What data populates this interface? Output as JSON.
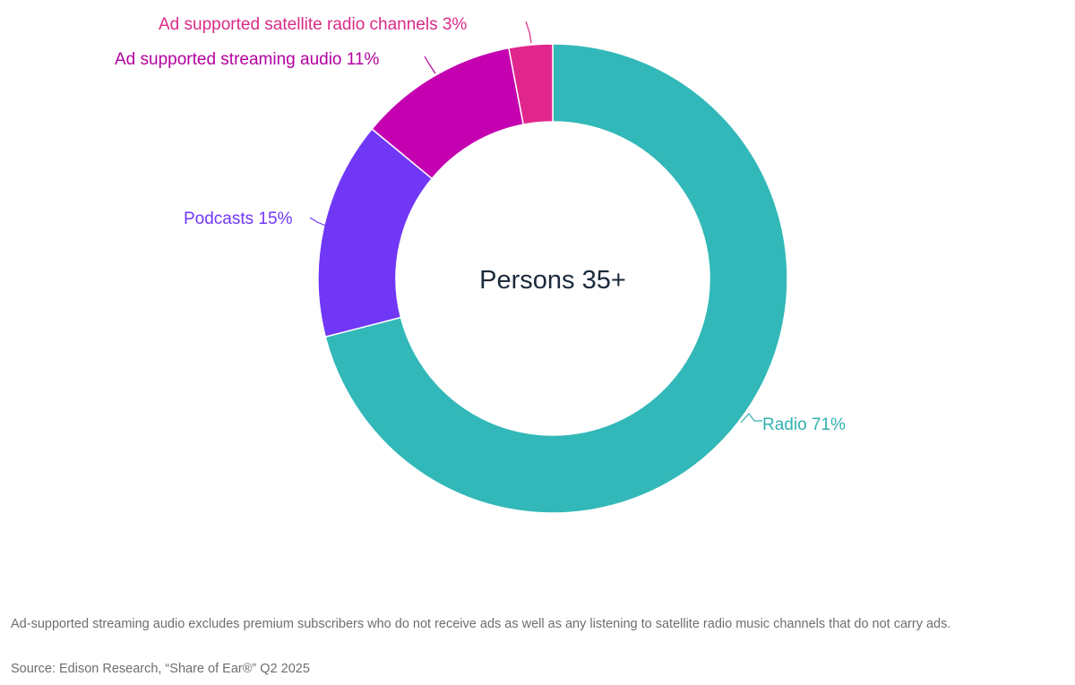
{
  "chart_data": {
    "type": "pie",
    "variant": "donut",
    "center_label": "Persons 35+",
    "slices": [
      {
        "name": "Radio",
        "value": 71,
        "label": "Radio 71%",
        "color": "#32b8b8"
      },
      {
        "name": "Podcasts",
        "value": 15,
        "label": "Podcasts 15%",
        "color": "#7037f7"
      },
      {
        "name": "Ad supported streaming audio",
        "value": 11,
        "label": "Ad supported streaming audio 11%",
        "color": "#c400b0"
      },
      {
        "name": "Ad supported satellite radio channels",
        "value": 3,
        "label": "Ad supported satellite radio channels 3%",
        "color": "#e0268c"
      }
    ],
    "label_colors": [
      "#32b0b0",
      "#7037f7",
      "#b300a0",
      "#d92a88"
    ],
    "start_angle_deg": 0,
    "direction": "clockwise"
  },
  "footnote": "Ad-supported streaming audio excludes premium subscribers who do not receive ads as well as any listening to satellite radio music channels that do not carry ads.",
  "source": "Source: Edison Research, “Share of Ear®” Q2 2025"
}
